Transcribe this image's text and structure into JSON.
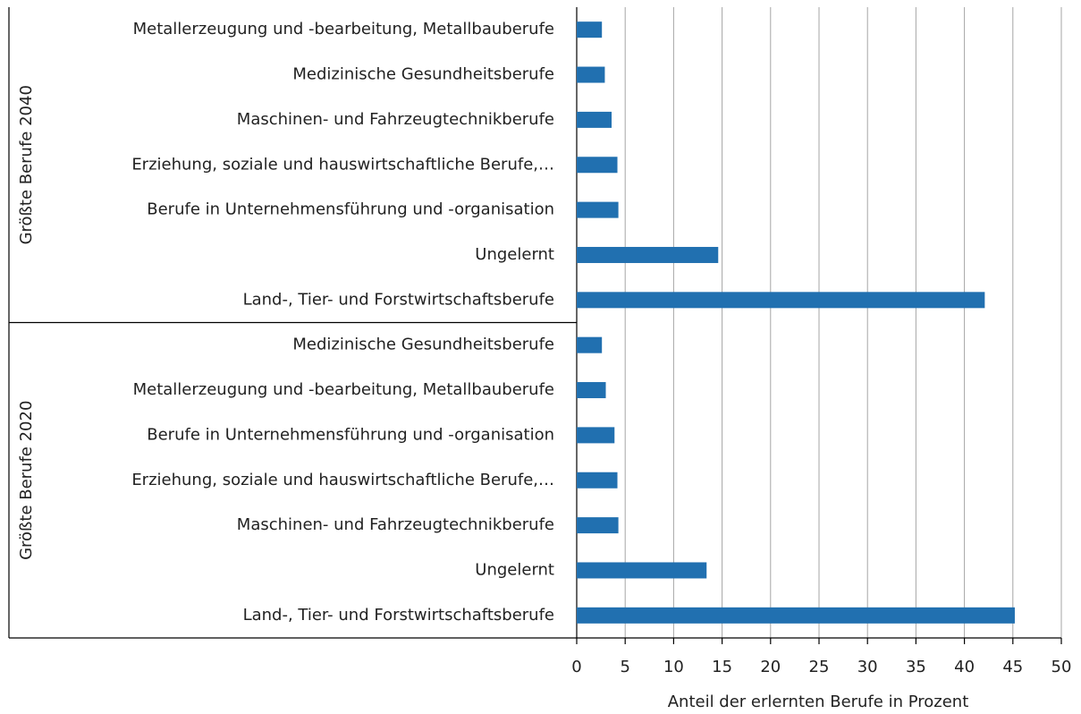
{
  "chart_data": {
    "type": "bar",
    "orientation": "horizontal",
    "xlabel": "Anteil der erlernten Berufe in Prozent",
    "color": "#2170b0",
    "xlim": [
      0,
      50
    ],
    "xticks": [
      0,
      5,
      10,
      15,
      20,
      25,
      30,
      35,
      40,
      45,
      50
    ],
    "grid": true,
    "groups": [
      {
        "label": "Größte Berufe 2040",
        "categories": [
          "Metallerzeugung und -bearbeitung, Metallbauberufe",
          "Medizinische Gesundheitsberufe",
          "Maschinen- und Fahrzeugtechnikberufe",
          "Erziehung, soziale und hauswirtschaftliche Berufe,…",
          "Berufe in Unternehmensführung und -organisation",
          "Ungelernt",
          "Land-, Tier- und Forstwirtschaftsberufe"
        ],
        "values": [
          2.6,
          2.9,
          3.6,
          4.2,
          4.3,
          14.6,
          42.1
        ]
      },
      {
        "label": "Größte Berufe 2020",
        "categories": [
          "Medizinische Gesundheitsberufe",
          "Metallerzeugung und -bearbeitung, Metallbauberufe",
          "Berufe in Unternehmensführung und -organisation",
          "Erziehung, soziale und hauswirtschaftliche Berufe,…",
          "Maschinen- und Fahrzeugtechnikberufe",
          "Ungelernt",
          "Land-, Tier- und Forstwirtschaftsberufe"
        ],
        "values": [
          2.6,
          3.0,
          3.9,
          4.2,
          4.3,
          13.4,
          45.2
        ]
      }
    ]
  }
}
